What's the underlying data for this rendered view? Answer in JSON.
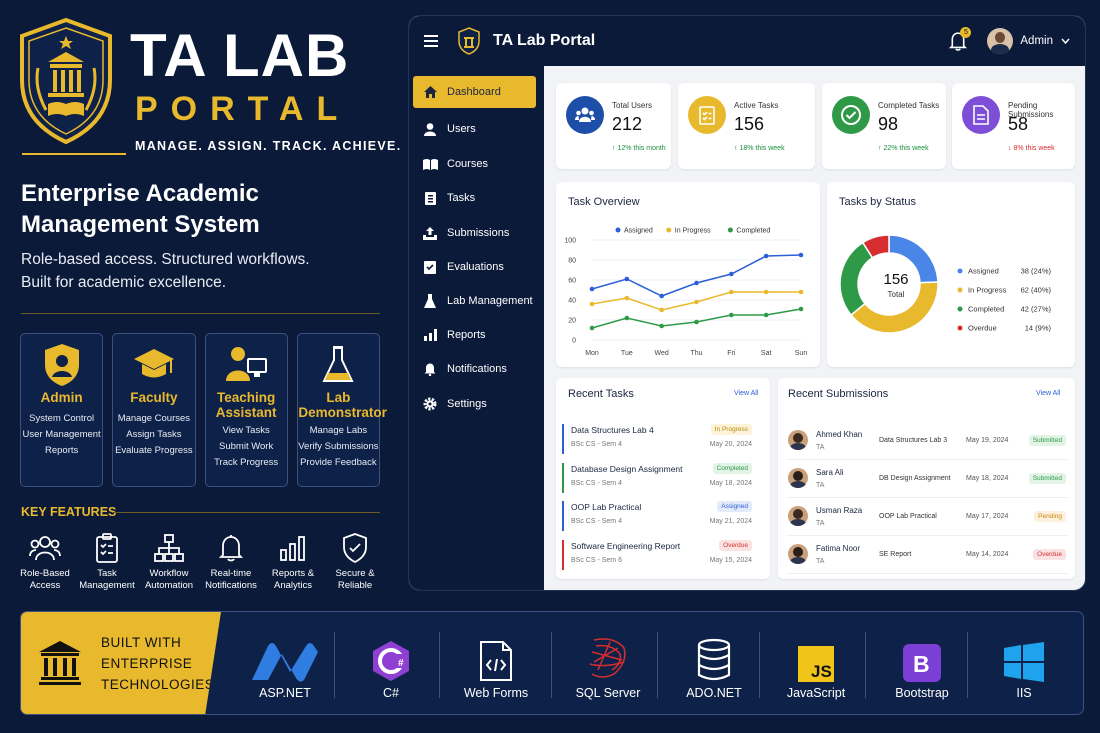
{
  "brand": {
    "title": "TA LAB",
    "subtitle": "PORTAL",
    "tagline": "MANAGE. ASSIGN. TRACK. ACHIEVE."
  },
  "hero": {
    "title": "Enterprise Academic Management System",
    "desc_line1": "Role-based access. Structured workflows.",
    "desc_line2": "Built for academic excellence."
  },
  "roles": [
    {
      "title": "Admin",
      "items": [
        "System Control",
        "User Management",
        "Reports"
      ]
    },
    {
      "title": "Faculty",
      "items": [
        "Manage Courses",
        "Assign Tasks",
        "Evaluate Progress"
      ]
    },
    {
      "title": "Teaching Assistant",
      "items": [
        "View Tasks",
        "Submit Work",
        "Track Progress"
      ]
    },
    {
      "title": "Lab Demonstrator",
      "items": [
        "Manage Labs",
        "Verify Submissions",
        "Provide Feedback"
      ]
    }
  ],
  "key_features": {
    "title": "KEY FEATURES",
    "items": [
      {
        "label1": "Role-Based",
        "label2": "Access",
        "icon": "users-icon"
      },
      {
        "label1": "Task",
        "label2": "Management",
        "icon": "clipboard-icon"
      },
      {
        "label1": "Workflow",
        "label2": "Automation",
        "icon": "hierarchy-icon"
      },
      {
        "label1": "Real-time",
        "label2": "Notifications",
        "icon": "bell-icon"
      },
      {
        "label1": "Reports &",
        "label2": "Analytics",
        "icon": "bar-chart-icon"
      },
      {
        "label1": "Secure &",
        "label2": "Reliable",
        "icon": "shield-check-icon"
      }
    ]
  },
  "app": {
    "title": "TA Lab Portal",
    "notif_count": "5",
    "user": "Admin",
    "nav": [
      "Dashboard",
      "Users",
      "Courses",
      "Tasks",
      "Submissions",
      "Evaluations",
      "Lab Management",
      "Reports",
      "Notifications",
      "Settings"
    ],
    "stats": [
      {
        "label": "Total Users",
        "value": "212",
        "change": "↑ 12% this month",
        "color": "#1e4fa8",
        "change_color": "#1a8f3c"
      },
      {
        "label": "Active Tasks",
        "value": "156",
        "change": "↑ 18% this week",
        "color": "#e9b92d",
        "change_color": "#1a8f3c"
      },
      {
        "label": "Completed Tasks",
        "value": "98",
        "change": "↑ 22% this week",
        "color": "#2e9a48",
        "change_color": "#1a8f3c"
      },
      {
        "label": "Pending Submissions",
        "value": "58",
        "change": "↓ 8% this week",
        "color": "#7c4fd6",
        "change_color": "#d62e2e"
      }
    ],
    "task_overview": {
      "title": "Task Overview"
    },
    "tasks_by_status": {
      "title": "Tasks by Status",
      "total": "156",
      "total_label": "Total"
    },
    "recent_tasks": {
      "title": "Recent Tasks",
      "view_all": "View All",
      "rows": [
        {
          "name": "Data Structures Lab 4",
          "meta": "BSc CS - Sem 4",
          "status": "In Progress",
          "date": "May 20, 2024",
          "bar": "#2c5fd6",
          "bg": "#fdf3d8",
          "fg": "#b8870b"
        },
        {
          "name": "Database Design Assignment",
          "meta": "BSc CS - Sem 4",
          "status": "Completed",
          "date": "May 18, 2024",
          "bar": "#2e9a48",
          "bg": "#e1f4e6",
          "fg": "#2e9a48"
        },
        {
          "name": "OOP Lab Practical",
          "meta": "BSc CS - Sem 4",
          "status": "Assigned",
          "date": "May 21, 2024",
          "bar": "#2c5fd6",
          "bg": "#e3ebfb",
          "fg": "#2c5fd6"
        },
        {
          "name": "Software Engineering Report",
          "meta": "BSc CS - Sem 6",
          "status": "Overdue",
          "date": "May 15, 2024",
          "bar": "#d62e2e",
          "bg": "#fbe2e2",
          "fg": "#d62e2e"
        }
      ]
    },
    "recent_submissions": {
      "title": "Recent Submissions",
      "view_all": "View All",
      "rows": [
        {
          "name": "Ahmed Khan",
          "role": "TA",
          "assignment": "Data Structures Lab 3",
          "date": "May 19, 2024",
          "status": "Submitted",
          "bg": "#e1f4e6",
          "fg": "#2e9a48"
        },
        {
          "name": "Sara Ali",
          "role": "TA",
          "assignment": "DB Design Assignment",
          "date": "May 18, 2024",
          "status": "Submitted",
          "bg": "#e1f4e6",
          "fg": "#2e9a48"
        },
        {
          "name": "Usman Raza",
          "role": "TA",
          "assignment": "OOP Lab Practical",
          "date": "May 17, 2024",
          "status": "Pending",
          "bg": "#fdf0dc",
          "fg": "#c98a14"
        },
        {
          "name": "Fatima Noor",
          "role": "TA",
          "assignment": "SE Report",
          "date": "May 14, 2024",
          "status": "Overdue",
          "bg": "#fbe2e2",
          "fg": "#d62e2e"
        }
      ]
    }
  },
  "chart_data": [
    {
      "type": "line",
      "title": "Task Overview",
      "categories": [
        "Mon",
        "Tue",
        "Wed",
        "Thu",
        "Fri",
        "Sat",
        "Sun"
      ],
      "ylim": [
        0,
        100
      ],
      "yticks": [
        0,
        20,
        40,
        60,
        80,
        100
      ],
      "series": [
        {
          "name": "Assigned",
          "color": "#2c5fd6",
          "values": [
            51,
            61,
            44,
            57,
            66,
            84,
            85
          ]
        },
        {
          "name": "In Progress",
          "color": "#e9b92d",
          "values": [
            36,
            42,
            30,
            38,
            48,
            48,
            48
          ]
        },
        {
          "name": "Completed",
          "color": "#2e9a48",
          "values": [
            12,
            22,
            14,
            18,
            25,
            25,
            31
          ]
        }
      ],
      "legend": "top"
    },
    {
      "type": "pie",
      "title": "Tasks by Status",
      "slices": [
        {
          "name": "Assigned",
          "value": 38,
          "pct": "38 (24%)",
          "color": "#4a86e8"
        },
        {
          "name": "In Progress",
          "value": 62,
          "pct": "62 (40%)",
          "color": "#e9b92d"
        },
        {
          "name": "Completed",
          "value": 42,
          "pct": "42 (27%)",
          "color": "#2e9a48"
        },
        {
          "name": "Overdue",
          "value": 14,
          "pct": "14 (9%)",
          "color": "#d62e2e"
        }
      ]
    }
  ],
  "technologies": {
    "built_line1": "BUILT WITH",
    "built_line2": "ENTERPRISE",
    "built_line3": "TECHNOLOGIES",
    "items": [
      "ASP.NET",
      "C#",
      "Web Forms",
      "SQL Server",
      "ADO.NET",
      "JavaScript",
      "Bootstrap",
      "IIS"
    ]
  }
}
